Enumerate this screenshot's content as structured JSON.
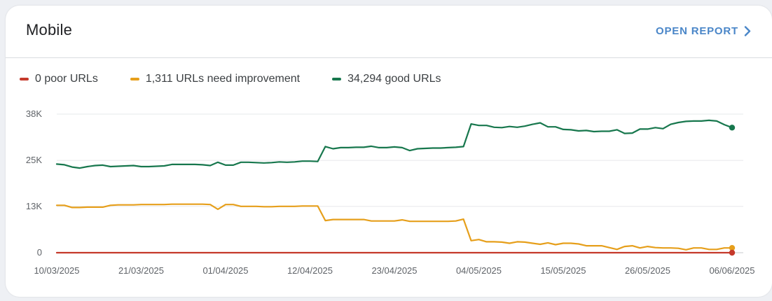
{
  "card": {
    "title": "Mobile",
    "open_report_label": "OPEN REPORT"
  },
  "legend": [
    {
      "label": "0 poor URLs",
      "color": "#c5392b"
    },
    {
      "label": "1,311 URLs need improvement",
      "color": "#e69f1b"
    },
    {
      "label": "34,294 good URLs",
      "color": "#17774d"
    }
  ],
  "chart_data": {
    "type": "line",
    "title": "",
    "xlabel": "",
    "ylabel": "",
    "ylim": [
      0,
      38000
    ],
    "y_ticks": [
      {
        "value": 0,
        "label": "0"
      },
      {
        "value": 12700,
        "label": "13K"
      },
      {
        "value": 25300,
        "label": "25K"
      },
      {
        "value": 38000,
        "label": "38K"
      }
    ],
    "x_tick_labels": [
      "10/03/2025",
      "21/03/2025",
      "01/04/2025",
      "12/04/2025",
      "23/04/2025",
      "04/05/2025",
      "15/05/2025",
      "26/05/2025",
      "06/06/2025"
    ],
    "x_tick_days": [
      0,
      11,
      22,
      33,
      44,
      55,
      66,
      77,
      88
    ],
    "x_range_days": [
      0,
      88
    ],
    "series": [
      {
        "name": "good URLs",
        "color": "#17774d",
        "points": [
          [
            0,
            24300
          ],
          [
            1,
            24100
          ],
          [
            2,
            23500
          ],
          [
            3,
            23200
          ],
          [
            4,
            23600
          ],
          [
            5,
            23900
          ],
          [
            6,
            24000
          ],
          [
            7,
            23600
          ],
          [
            8,
            23700
          ],
          [
            9,
            23800
          ],
          [
            10,
            23900
          ],
          [
            11,
            23600
          ],
          [
            12,
            23600
          ],
          [
            13,
            23700
          ],
          [
            14,
            23800
          ],
          [
            15,
            24200
          ],
          [
            16,
            24200
          ],
          [
            17,
            24200
          ],
          [
            18,
            24200
          ],
          [
            19,
            24100
          ],
          [
            20,
            23900
          ],
          [
            21,
            24800
          ],
          [
            22,
            24000
          ],
          [
            23,
            24000
          ],
          [
            24,
            24800
          ],
          [
            25,
            24800
          ],
          [
            26,
            24700
          ],
          [
            27,
            24600
          ],
          [
            28,
            24700
          ],
          [
            29,
            24900
          ],
          [
            30,
            24800
          ],
          [
            31,
            24900
          ],
          [
            32,
            25100
          ],
          [
            33,
            25100
          ],
          [
            34,
            25000
          ],
          [
            35,
            29100
          ],
          [
            36,
            28500
          ],
          [
            37,
            28800
          ],
          [
            38,
            28800
          ],
          [
            39,
            28900
          ],
          [
            40,
            28900
          ],
          [
            41,
            29200
          ],
          [
            42,
            28800
          ],
          [
            43,
            28800
          ],
          [
            44,
            29000
          ],
          [
            45,
            28800
          ],
          [
            46,
            28000
          ],
          [
            47,
            28500
          ],
          [
            48,
            28600
          ],
          [
            49,
            28700
          ],
          [
            50,
            28700
          ],
          [
            51,
            28800
          ],
          [
            52,
            28900
          ],
          [
            53,
            29100
          ],
          [
            54,
            35300
          ],
          [
            55,
            34900
          ],
          [
            56,
            34900
          ],
          [
            57,
            34400
          ],
          [
            58,
            34300
          ],
          [
            59,
            34600
          ],
          [
            60,
            34400
          ],
          [
            61,
            34700
          ],
          [
            62,
            35200
          ],
          [
            63,
            35600
          ],
          [
            64,
            34500
          ],
          [
            65,
            34500
          ],
          [
            66,
            33800
          ],
          [
            67,
            33700
          ],
          [
            68,
            33400
          ],
          [
            69,
            33500
          ],
          [
            70,
            33200
          ],
          [
            71,
            33300
          ],
          [
            72,
            33300
          ],
          [
            73,
            33700
          ],
          [
            74,
            32700
          ],
          [
            75,
            32800
          ],
          [
            76,
            33900
          ],
          [
            77,
            33900
          ],
          [
            78,
            34300
          ],
          [
            79,
            34000
          ],
          [
            80,
            35200
          ],
          [
            81,
            35700
          ],
          [
            82,
            36000
          ],
          [
            83,
            36100
          ],
          [
            84,
            36100
          ],
          [
            85,
            36300
          ],
          [
            86,
            36100
          ],
          [
            87,
            35100
          ],
          [
            88,
            34294
          ]
        ]
      },
      {
        "name": "URLs need improvement",
        "color": "#e69f1b",
        "points": [
          [
            0,
            13000
          ],
          [
            1,
            13000
          ],
          [
            2,
            12400
          ],
          [
            3,
            12400
          ],
          [
            4,
            12500
          ],
          [
            5,
            12500
          ],
          [
            6,
            12500
          ],
          [
            7,
            13000
          ],
          [
            8,
            13100
          ],
          [
            9,
            13100
          ],
          [
            10,
            13100
          ],
          [
            11,
            13200
          ],
          [
            12,
            13200
          ],
          [
            13,
            13200
          ],
          [
            14,
            13200
          ],
          [
            15,
            13300
          ],
          [
            16,
            13300
          ],
          [
            17,
            13300
          ],
          [
            18,
            13300
          ],
          [
            19,
            13300
          ],
          [
            20,
            13200
          ],
          [
            21,
            11900
          ],
          [
            22,
            13200
          ],
          [
            23,
            13200
          ],
          [
            24,
            12700
          ],
          [
            25,
            12700
          ],
          [
            26,
            12700
          ],
          [
            27,
            12600
          ],
          [
            28,
            12600
          ],
          [
            29,
            12700
          ],
          [
            30,
            12700
          ],
          [
            31,
            12700
          ],
          [
            32,
            12800
          ],
          [
            33,
            12800
          ],
          [
            34,
            12800
          ],
          [
            35,
            8800
          ],
          [
            36,
            9100
          ],
          [
            37,
            9100
          ],
          [
            38,
            9100
          ],
          [
            39,
            9100
          ],
          [
            40,
            9100
          ],
          [
            41,
            8700
          ],
          [
            42,
            8700
          ],
          [
            43,
            8700
          ],
          [
            44,
            8700
          ],
          [
            45,
            9000
          ],
          [
            46,
            8600
          ],
          [
            47,
            8600
          ],
          [
            48,
            8600
          ],
          [
            49,
            8600
          ],
          [
            50,
            8600
          ],
          [
            51,
            8600
          ],
          [
            52,
            8700
          ],
          [
            53,
            9200
          ],
          [
            54,
            3300
          ],
          [
            55,
            3600
          ],
          [
            56,
            3000
          ],
          [
            57,
            3000
          ],
          [
            58,
            2900
          ],
          [
            59,
            2600
          ],
          [
            60,
            3000
          ],
          [
            61,
            2900
          ],
          [
            62,
            2600
          ],
          [
            63,
            2300
          ],
          [
            64,
            2700
          ],
          [
            65,
            2200
          ],
          [
            66,
            2600
          ],
          [
            67,
            2600
          ],
          [
            68,
            2400
          ],
          [
            69,
            1900
          ],
          [
            70,
            1900
          ],
          [
            71,
            1900
          ],
          [
            72,
            1400
          ],
          [
            73,
            900
          ],
          [
            74,
            1700
          ],
          [
            75,
            1900
          ],
          [
            76,
            1300
          ],
          [
            77,
            1700
          ],
          [
            78,
            1400
          ],
          [
            79,
            1300
          ],
          [
            80,
            1300
          ],
          [
            81,
            1200
          ],
          [
            82,
            800
          ],
          [
            83,
            1300
          ],
          [
            84,
            1300
          ],
          [
            85,
            900
          ],
          [
            86,
            900
          ],
          [
            87,
            1300
          ],
          [
            88,
            1311
          ]
        ]
      },
      {
        "name": "poor URLs",
        "color": "#c5392b",
        "points": [
          [
            0,
            0
          ],
          [
            88,
            0
          ]
        ]
      }
    ]
  }
}
